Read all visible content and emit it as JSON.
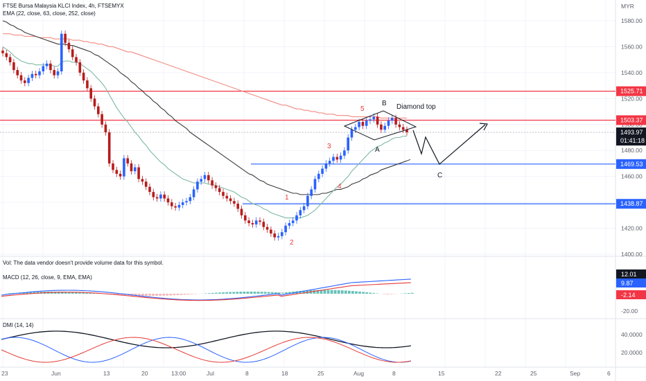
{
  "header": {
    "title": "FTSE Bursa Malaysia KLCI Index, 4h, FTSEMYX",
    "ema_label": "EMA (22, close, 63, close, 252, close)",
    "vol_label": "Vol: The data vendor doesn't provide volume data for this symbol.",
    "macd_label": "MACD (12, 26, close, 9, EMA, EMA)",
    "dmi_label": "DMI (14, 14)"
  },
  "currency": "MYR",
  "price_axis": {
    "ticks": [
      "1580.00",
      "1560.00",
      "1540.00",
      "1520.00",
      "1500.00",
      "1480.00",
      "1460.00",
      "1440.00",
      "1420.00",
      "1400.00"
    ],
    "tags": [
      {
        "label": "1525.71",
        "value": 1525.71,
        "color": "#f23645"
      },
      {
        "label": "1503.37",
        "value": 1503.37,
        "color": "#f23645"
      },
      {
        "label": "1469.53",
        "value": 1469.53,
        "color": "#2962ff"
      },
      {
        "label": "1438.87",
        "value": 1438.87,
        "color": "#2962ff"
      }
    ],
    "last_price": "1493.97",
    "countdown": "01:41:18"
  },
  "macd_axis": {
    "ticks": [
      "20.00",
      "-20.00"
    ],
    "tags": [
      "12.01",
      "9.87",
      "-2.14"
    ]
  },
  "dmi_axis": {
    "ticks": [
      "40.0000",
      "20.0000"
    ]
  },
  "time_axis": {
    "labels": [
      "23",
      "Jun",
      "13",
      "20",
      "13:00",
      "Jul",
      "8",
      "18",
      "25",
      "Aug",
      "8",
      "15",
      "22",
      "25",
      "Sep",
      "6"
    ]
  },
  "annotations": {
    "pattern": "Diamond top",
    "waves_red": [
      "1",
      "2",
      "3",
      "4",
      "5"
    ],
    "waves_black": [
      "A",
      "B",
      "C"
    ]
  },
  "chart_data": {
    "type": "candlestick",
    "title": "FTSE Bursa Malaysia KLCI Index, 4h, FTSEMYX",
    "ylim": [
      1400,
      1590
    ],
    "horizontal_levels": [
      1525.71,
      1503.37,
      1469.53,
      1438.87
    ],
    "closes": [
      1555,
      1552,
      1548,
      1542,
      1538,
      1534,
      1532,
      1536,
      1539,
      1538,
      1541,
      1545,
      1547,
      1542,
      1538,
      1541,
      1570,
      1563,
      1558,
      1552,
      1548,
      1540,
      1534,
      1528,
      1520,
      1514,
      1508,
      1500,
      1494,
      1470,
      1465,
      1462,
      1460,
      1474,
      1470,
      1464,
      1467,
      1458,
      1456,
      1452,
      1448,
      1444,
      1443,
      1446,
      1443,
      1440,
      1437,
      1436,
      1438,
      1440,
      1441,
      1444,
      1450,
      1456,
      1458,
      1461,
      1457,
      1453,
      1451,
      1448,
      1445,
      1443,
      1441,
      1439,
      1435,
      1430,
      1426,
      1424,
      1423,
      1426,
      1425,
      1421,
      1419,
      1416,
      1413,
      1414,
      1417,
      1422,
      1424,
      1426,
      1430,
      1434,
      1437,
      1445,
      1450,
      1458,
      1462,
      1466,
      1470,
      1472,
      1475,
      1473,
      1476,
      1480,
      1490,
      1496,
      1498,
      1502,
      1499,
      1503,
      1504,
      1506,
      1500,
      1496,
      1499,
      1503,
      1505,
      1500,
      1498,
      1496,
      1494
    ],
    "ema22": [
      1560,
      1558,
      1556,
      1553,
      1551,
      1549,
      1548,
      1547,
      1547,
      1546,
      1546,
      1546,
      1546,
      1546,
      1545,
      1545,
      1548,
      1549,
      1549,
      1548,
      1548,
      1547,
      1545,
      1543,
      1541,
      1538,
      1535,
      1532,
      1528,
      1523,
      1518,
      1513,
      1509,
      1505,
      1502,
      1498,
      1494,
      1491,
      1487,
      1484,
      1480,
      1477,
      1474,
      1471,
      1469,
      1466,
      1464,
      1462,
      1460,
      1458,
      1457,
      1456,
      1455,
      1455,
      1455,
      1455,
      1454,
      1454,
      1453,
      1452,
      1451,
      1450,
      1449,
      1448,
      1446,
      1444,
      1443,
      1441,
      1439,
      1438,
      1437,
      1435,
      1434,
      1432,
      1431,
      1430,
      1429,
      1428,
      1428,
      1428,
      1428,
      1428,
      1429,
      1430,
      1432,
      1434,
      1437,
      1440,
      1443,
      1446,
      1449,
      1452,
      1454,
      1457,
      1460,
      1464,
      1467,
      1470,
      1473,
      1476,
      1479,
      1481,
      1483,
      1484,
      1486,
      1487,
      1489,
      1490,
      1490,
      1491,
      1491
    ],
    "ema63": [
      1580,
      1579,
      1577,
      1576,
      1574,
      1573,
      1571,
      1570,
      1569,
      1568,
      1567,
      1566,
      1565,
      1564,
      1563,
      1562,
      1562,
      1562,
      1561,
      1561,
      1560,
      1559,
      1558,
      1557,
      1556,
      1554,
      1553,
      1551,
      1549,
      1547,
      1545,
      1543,
      1540,
      1538,
      1536,
      1533,
      1531,
      1528,
      1526,
      1523,
      1521,
      1518,
      1516,
      1513,
      1511,
      1508,
      1506,
      1503,
      1501,
      1499,
      1497,
      1494,
      1492,
      1490,
      1488,
      1486,
      1484,
      1482,
      1480,
      1478,
      1476,
      1474,
      1472,
      1470,
      1468,
      1466,
      1464,
      1462,
      1461,
      1459,
      1457,
      1456,
      1454,
      1453,
      1452,
      1451,
      1450,
      1449,
      1448,
      1447,
      1447,
      1446,
      1446,
      1446,
      1446,
      1446,
      1446,
      1447,
      1447,
      1448,
      1449,
      1450,
      1450,
      1451,
      1452,
      1454,
      1455,
      1456,
      1458,
      1459,
      1461,
      1462,
      1463,
      1465,
      1466,
      1467,
      1468,
      1469,
      1470,
      1471,
      1472
    ],
    "ema252": [
      1570,
      1570,
      1570,
      1569,
      1569,
      1569,
      1568,
      1568,
      1568,
      1568,
      1567,
      1567,
      1567,
      1567,
      1566,
      1566,
      1566,
      1566,
      1566,
      1565,
      1565,
      1565,
      1564,
      1564,
      1563,
      1563,
      1562,
      1562,
      1561,
      1560,
      1560,
      1559,
      1558,
      1557,
      1556,
      1556,
      1555,
      1554,
      1553,
      1552,
      1551,
      1550,
      1549,
      1548,
      1547,
      1546,
      1545,
      1544,
      1543,
      1542,
      1541,
      1540,
      1539,
      1538,
      1537,
      1536,
      1535,
      1534,
      1533,
      1532,
      1531,
      1530,
      1529,
      1528,
      1527,
      1526,
      1525,
      1524,
      1523,
      1522,
      1521,
      1520,
      1519,
      1518,
      1517,
      1516,
      1515,
      1515,
      1514,
      1513,
      1512,
      1512,
      1511,
      1511,
      1510,
      1510,
      1509,
      1509,
      1508,
      1508,
      1508,
      1507,
      1507,
      1507,
      1507,
      1506,
      1506,
      1506,
      1506,
      1506,
      1506,
      1506,
      1506,
      1505,
      1505,
      1505,
      1505,
      1505,
      1505,
      1505,
      1505
    ]
  }
}
